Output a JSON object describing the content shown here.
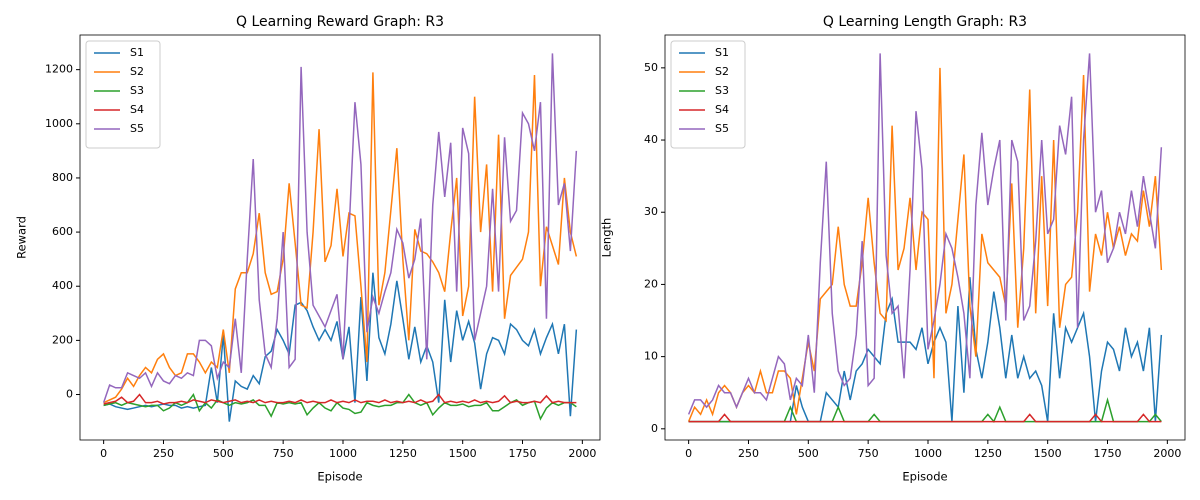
{
  "chart_data": [
    {
      "type": "line",
      "title": "Q Learning Reward Graph: R3",
      "xlabel": "Episode",
      "ylabel": "Reward",
      "x": [
        0,
        25,
        50,
        75,
        100,
        125,
        150,
        175,
        200,
        225,
        250,
        275,
        300,
        325,
        350,
        375,
        400,
        425,
        450,
        475,
        500,
        525,
        550,
        575,
        600,
        625,
        650,
        675,
        700,
        725,
        750,
        775,
        800,
        825,
        850,
        875,
        900,
        925,
        950,
        975,
        1000,
        1025,
        1050,
        1075,
        1100,
        1125,
        1150,
        1175,
        1200,
        1225,
        1250,
        1275,
        1300,
        1325,
        1350,
        1375,
        1400,
        1425,
        1450,
        1475,
        1500,
        1525,
        1550,
        1575,
        1600,
        1625,
        1650,
        1675,
        1700,
        1725,
        1750,
        1775,
        1800,
        1825,
        1850,
        1875,
        1900,
        1925,
        1950,
        1975
      ],
      "xlim": [
        -98.75,
        2073.75
      ],
      "ylim": [
        -168,
        1328
      ],
      "xticks": [
        0,
        250,
        500,
        750,
        1000,
        1250,
        1500,
        1750,
        2000
      ],
      "yticks": [
        0,
        200,
        400,
        600,
        800,
        1000,
        1200
      ],
      "legend": "upper left",
      "series": [
        {
          "name": "S1",
          "color": "#1f77b4",
          "values": [
            -40,
            -35,
            -45,
            -50,
            -55,
            -50,
            -45,
            -40,
            -45,
            -40,
            -35,
            -40,
            -40,
            -50,
            -45,
            -50,
            -45,
            -40,
            100,
            -30,
            220,
            -100,
            50,
            30,
            20,
            70,
            40,
            140,
            160,
            240,
            200,
            150,
            330,
            340,
            310,
            250,
            200,
            240,
            200,
            270,
            130,
            250,
            -30,
            360,
            50,
            450,
            210,
            150,
            260,
            420,
            280,
            130,
            250,
            120,
            180,
            120,
            -30,
            350,
            120,
            310,
            200,
            270,
            190,
            20,
            150,
            210,
            200,
            150,
            260,
            240,
            200,
            180,
            240,
            150,
            210,
            260,
            150,
            260,
            -80,
            240
          ]
        },
        {
          "name": "S2",
          "color": "#ff7f0e",
          "values": [
            -30,
            -20,
            -10,
            20,
            60,
            30,
            70,
            100,
            80,
            130,
            150,
            100,
            70,
            80,
            150,
            150,
            120,
            80,
            120,
            100,
            240,
            80,
            390,
            450,
            450,
            520,
            670,
            450,
            370,
            380,
            500,
            780,
            560,
            330,
            320,
            600,
            980,
            490,
            550,
            760,
            510,
            670,
            660,
            400,
            120,
            1190,
            330,
            450,
            680,
            910,
            500,
            200,
            610,
            530,
            520,
            490,
            450,
            380,
            600,
            800,
            290,
            400,
            1100,
            600,
            850,
            380,
            960,
            280,
            440,
            470,
            500,
            600,
            1180,
            400,
            620,
            550,
            480,
            800,
            600,
            510
          ]
        },
        {
          "name": "S3",
          "color": "#2ca02c",
          "values": [
            -40,
            -35,
            -30,
            -40,
            -30,
            -35,
            -40,
            -45,
            -40,
            -40,
            -60,
            -50,
            -30,
            -40,
            -30,
            0,
            -60,
            -30,
            -50,
            -20,
            -30,
            -40,
            -30,
            -35,
            -30,
            -20,
            -40,
            -40,
            -80,
            -30,
            -35,
            -30,
            -35,
            -30,
            -75,
            -50,
            -30,
            -50,
            -60,
            -30,
            -50,
            -55,
            -70,
            -65,
            -30,
            -40,
            -45,
            -40,
            -40,
            -30,
            -30,
            0,
            -30,
            -40,
            -30,
            -75,
            -50,
            -30,
            -40,
            -40,
            -35,
            -45,
            -40,
            -40,
            -30,
            -60,
            -60,
            -45,
            -30,
            -20,
            -40,
            -30,
            -25,
            -90,
            -50,
            -30,
            -40,
            -30,
            -30,
            -45
          ]
        },
        {
          "name": "S4",
          "color": "#d62728",
          "values": [
            -35,
            -30,
            -25,
            -10,
            -30,
            -25,
            0,
            -30,
            -30,
            -25,
            -35,
            -30,
            -30,
            -25,
            -30,
            -20,
            -25,
            -30,
            -20,
            -25,
            -30,
            -25,
            -20,
            -30,
            -25,
            -30,
            -20,
            -30,
            -25,
            -30,
            -30,
            -25,
            -30,
            -20,
            -30,
            -25,
            -30,
            -30,
            -20,
            -30,
            -25,
            -30,
            -20,
            -30,
            -25,
            -25,
            -30,
            -20,
            -30,
            -25,
            -30,
            -25,
            -30,
            -20,
            -30,
            -25,
            0,
            -30,
            -25,
            -30,
            -25,
            -30,
            -20,
            -30,
            -25,
            -30,
            -25,
            -5,
            -30,
            -25,
            -30,
            -30,
            -25,
            -30,
            -5,
            -30,
            -25,
            -30,
            -30,
            -30
          ]
        },
        {
          "name": "S5",
          "color": "#9467bd",
          "values": [
            -30,
            35,
            25,
            25,
            80,
            70,
            60,
            80,
            30,
            80,
            50,
            40,
            70,
            60,
            80,
            70,
            200,
            200,
            180,
            60,
            120,
            100,
            280,
            80,
            500,
            870,
            350,
            150,
            100,
            280,
            600,
            100,
            130,
            1210,
            600,
            330,
            290,
            250,
            310,
            370,
            130,
            600,
            1080,
            850,
            230,
            360,
            300,
            380,
            450,
            610,
            560,
            430,
            500,
            650,
            130,
            700,
            970,
            730,
            930,
            380,
            985,
            890,
            200,
            300,
            400,
            760,
            380,
            950,
            640,
            680,
            1040,
            1000,
            900,
            1080,
            280,
            1260,
            700,
            780,
            530,
            900
          ]
        }
      ]
    },
    {
      "type": "line",
      "title": "Q Learning Length Graph: R3",
      "xlabel": "Episode",
      "ylabel": "Length",
      "x": [
        0,
        25,
        50,
        75,
        100,
        125,
        150,
        175,
        200,
        225,
        250,
        275,
        300,
        325,
        350,
        375,
        400,
        425,
        450,
        475,
        500,
        525,
        550,
        575,
        600,
        625,
        650,
        675,
        700,
        725,
        750,
        775,
        800,
        825,
        850,
        875,
        900,
        925,
        950,
        975,
        1000,
        1025,
        1050,
        1075,
        1100,
        1125,
        1150,
        1175,
        1200,
        1225,
        1250,
        1275,
        1300,
        1325,
        1350,
        1375,
        1400,
        1425,
        1450,
        1475,
        1500,
        1525,
        1550,
        1575,
        1600,
        1625,
        1650,
        1675,
        1700,
        1725,
        1750,
        1775,
        1800,
        1825,
        1850,
        1875,
        1900,
        1925,
        1950,
        1975
      ],
      "xlim": [
        -98.75,
        2073.75
      ],
      "ylim": [
        -1.55,
        54.55
      ],
      "xticks": [
        0,
        250,
        500,
        750,
        1000,
        1250,
        1500,
        1750,
        2000
      ],
      "yticks": [
        0,
        10,
        20,
        30,
        40,
        50
      ],
      "legend": "upper left",
      "series": [
        {
          "name": "S1",
          "color": "#1f77b4",
          "values": [
            1,
            1,
            1,
            1,
            1,
            1,
            1,
            1,
            1,
            1,
            1,
            1,
            1,
            1,
            1,
            1,
            1,
            1,
            6,
            3,
            1,
            1,
            1,
            5,
            4,
            3,
            8,
            4,
            8,
            9,
            11,
            10,
            9,
            16,
            18,
            12,
            12,
            12,
            11,
            14,
            9,
            12,
            14,
            12,
            1,
            17,
            5,
            21,
            11,
            7,
            12,
            19,
            14,
            7,
            13,
            7,
            10,
            7,
            8,
            6,
            1,
            16,
            7,
            14,
            12,
            14,
            16,
            10,
            1,
            8,
            12,
            11,
            8,
            14,
            10,
            12,
            8,
            14,
            1,
            13
          ]
        },
        {
          "name": "S2",
          "color": "#ff7f0e",
          "values": [
            1,
            3,
            2,
            4,
            2,
            5,
            6,
            5,
            3,
            5,
            6,
            5,
            8,
            5,
            5,
            8,
            8,
            7,
            2,
            7,
            12,
            8,
            18,
            19,
            20,
            28,
            20,
            17,
            17,
            23,
            32,
            23,
            16,
            15,
            42,
            22,
            25,
            32,
            22,
            30,
            29,
            7,
            50,
            16,
            20,
            29,
            38,
            17,
            10,
            27,
            23,
            22,
            21,
            17,
            34,
            14,
            25,
            47,
            16,
            35,
            17,
            40,
            14,
            20,
            21,
            30,
            49,
            19,
            27,
            24,
            30,
            25,
            28,
            24,
            27,
            26,
            33,
            28,
            35,
            22
          ]
        },
        {
          "name": "S3",
          "color": "#2ca02c",
          "values": [
            1,
            1,
            1,
            1,
            1,
            1,
            1,
            1,
            1,
            1,
            1,
            1,
            1,
            1,
            1,
            1,
            1,
            3,
            1,
            1,
            1,
            1,
            1,
            1,
            1,
            3,
            1,
            1,
            1,
            1,
            1,
            2,
            1,
            1,
            1,
            1,
            1,
            1,
            1,
            1,
            1,
            1,
            1,
            1,
            1,
            1,
            1,
            1,
            1,
            1,
            2,
            1,
            3,
            1,
            1,
            1,
            1,
            1,
            1,
            1,
            1,
            1,
            1,
            1,
            1,
            1,
            1,
            1,
            1,
            1,
            4,
            1,
            1,
            1,
            1,
            1,
            1,
            1,
            2,
            1
          ]
        },
        {
          "name": "S4",
          "color": "#d62728",
          "values": [
            1,
            1,
            1,
            1,
            1,
            1,
            2,
            1,
            1,
            1,
            1,
            1,
            1,
            1,
            1,
            1,
            1,
            1,
            1,
            1,
            1,
            1,
            1,
            1,
            1,
            1,
            1,
            1,
            1,
            1,
            1,
            1,
            1,
            1,
            1,
            1,
            1,
            1,
            1,
            1,
            1,
            1,
            1,
            1,
            1,
            1,
            1,
            1,
            1,
            1,
            1,
            1,
            1,
            1,
            1,
            1,
            1,
            2,
            1,
            1,
            1,
            1,
            1,
            1,
            1,
            1,
            1,
            1,
            2,
            1,
            1,
            1,
            1,
            1,
            1,
            1,
            2,
            1,
            1,
            1
          ]
        },
        {
          "name": "S5",
          "color": "#9467bd",
          "values": [
            2,
            4,
            4,
            3,
            4,
            6,
            5,
            5,
            3,
            5,
            7,
            5,
            5,
            4,
            7,
            10,
            9,
            4,
            7,
            6,
            13,
            5,
            23,
            37,
            16,
            8,
            6,
            7,
            13,
            26,
            6,
            7,
            52,
            24,
            16,
            17,
            7,
            22,
            44,
            36,
            11,
            15,
            20,
            27,
            25,
            21,
            16,
            7,
            31,
            41,
            31,
            36,
            40,
            15,
            40,
            37,
            15,
            17,
            26,
            40,
            27,
            29,
            42,
            38,
            46,
            14,
            40,
            52,
            30,
            33,
            23,
            25,
            30,
            27,
            33,
            28,
            35,
            30,
            25,
            39
          ]
        }
      ]
    }
  ]
}
